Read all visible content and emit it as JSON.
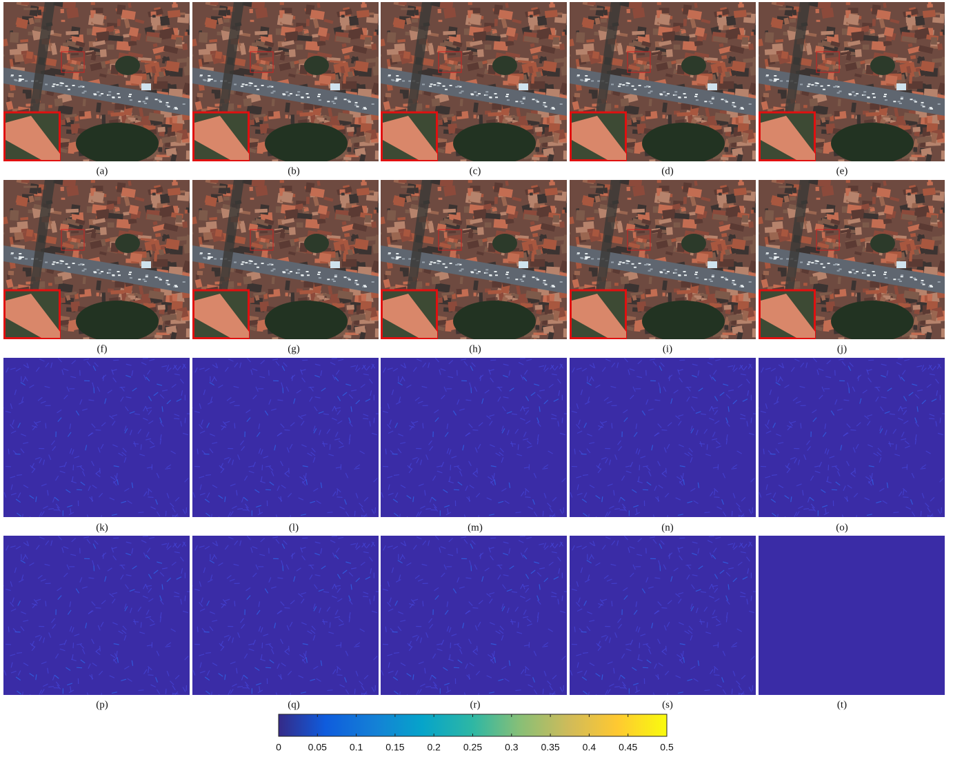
{
  "panels": [
    {
      "label": "(a)",
      "kind": "image"
    },
    {
      "label": "(b)",
      "kind": "image"
    },
    {
      "label": "(c)",
      "kind": "image"
    },
    {
      "label": "(d)",
      "kind": "image"
    },
    {
      "label": "(e)",
      "kind": "image"
    },
    {
      "label": "(f)",
      "kind": "image"
    },
    {
      "label": "(g)",
      "kind": "image"
    },
    {
      "label": "(h)",
      "kind": "image"
    },
    {
      "label": "(i)",
      "kind": "image"
    },
    {
      "label": "(j)",
      "kind": "image"
    },
    {
      "label": "(k)",
      "kind": "error"
    },
    {
      "label": "(l)",
      "kind": "error"
    },
    {
      "label": "(m)",
      "kind": "error"
    },
    {
      "label": "(n)",
      "kind": "error"
    },
    {
      "label": "(o)",
      "kind": "error"
    },
    {
      "label": "(p)",
      "kind": "error"
    },
    {
      "label": "(q)",
      "kind": "error"
    },
    {
      "label": "(r)",
      "kind": "error"
    },
    {
      "label": "(s)",
      "kind": "error"
    },
    {
      "label": "(t)",
      "kind": "flat"
    }
  ],
  "colorbar": {
    "lim": [
      0,
      0.5
    ],
    "ticks": [
      0,
      0.05,
      0.1,
      0.15,
      0.2,
      0.25,
      0.3,
      0.35,
      0.4,
      0.45,
      0.5
    ]
  }
}
